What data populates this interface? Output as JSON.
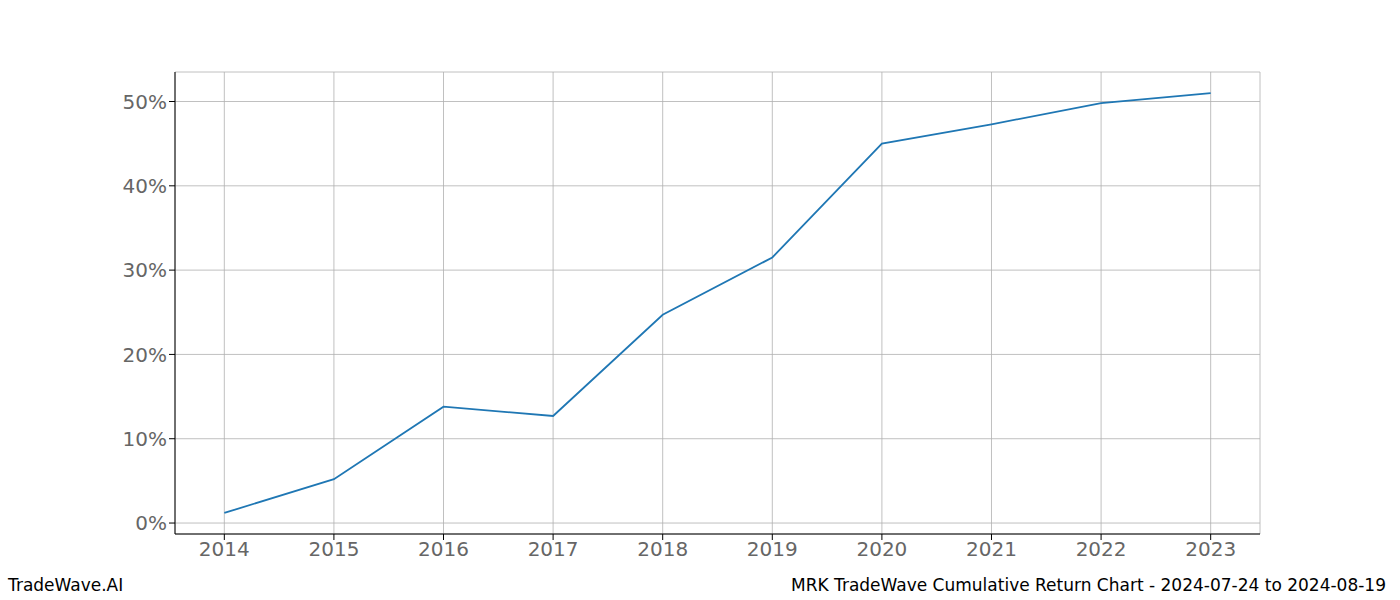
{
  "chart_data": {
    "type": "line",
    "title": "MRK TradeWave Cumulative Return Chart - 2024-07-24 to 2024-08-19",
    "watermark": "TradeWave.AI",
    "x": [
      2014,
      2015,
      2016,
      2017,
      2018,
      2019,
      2020,
      2021,
      2022,
      2023
    ],
    "values": [
      1.2,
      5.2,
      13.8,
      12.7,
      24.7,
      31.5,
      45.0,
      47.3,
      49.8,
      51.0
    ],
    "color": "#1f77b4",
    "xlim": [
      2013.55,
      2023.45
    ],
    "xticks": [
      2014,
      2015,
      2016,
      2017,
      2018,
      2019,
      2020,
      2021,
      2022,
      2023
    ],
    "ylim": [
      -1.3,
      53.5
    ],
    "yticks": [
      {
        "value": 0,
        "label": "0%"
      },
      {
        "value": 10,
        "label": "10%"
      },
      {
        "value": 20,
        "label": "20%"
      },
      {
        "value": 30,
        "label": "30%"
      },
      {
        "value": 40,
        "label": "40%"
      },
      {
        "value": 50,
        "label": "50%"
      }
    ],
    "grid": true
  }
}
